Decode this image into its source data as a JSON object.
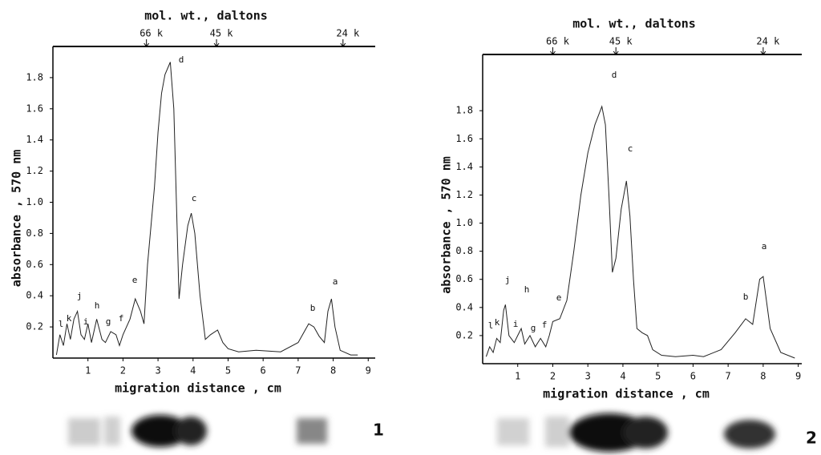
{
  "chart_data": [
    {
      "type": "line",
      "top_axis_label": "mol. wt., daltons",
      "x_label": "migration distance , cm",
      "y_label": "absorbance , 570 nm",
      "panel_label": "1",
      "color": "#222222",
      "xlim": [
        0,
        9.2
      ],
      "ylim": [
        0,
        2.0
      ],
      "xticks": [
        1,
        2,
        3,
        4,
        5,
        6,
        7,
        8,
        9
      ],
      "yticks": [
        0.2,
        0.4,
        0.6,
        0.8,
        {
          "value": 1,
          "label": "1.0"
        },
        1.2,
        1.4,
        1.6,
        1.8
      ],
      "x2ticks": [
        {
          "value": 2.67,
          "label": "66 k"
        },
        {
          "value": 4.67,
          "label": "45 k"
        },
        {
          "value": 8.28,
          "label": "24 k"
        }
      ],
      "peak_labels": [
        "a",
        "b",
        "c",
        "d",
        "e",
        "f",
        "g",
        "h",
        "i",
        "j",
        "k",
        "l"
      ],
      "x": [
        0.1,
        0.2,
        0.3,
        0.4,
        0.5,
        0.6,
        0.7,
        0.8,
        0.9,
        1.0,
        1.1,
        1.25,
        1.4,
        1.5,
        1.65,
        1.8,
        1.9,
        2.0,
        2.2,
        2.35,
        2.5,
        2.6,
        2.7,
        2.9,
        3.0,
        3.1,
        3.2,
        3.35,
        3.45,
        3.55,
        3.6,
        3.7,
        3.85,
        3.95,
        4.05,
        4.2,
        4.35,
        4.5,
        4.7,
        4.85,
        5.0,
        5.3,
        5.8,
        6.5,
        7.0,
        7.3,
        7.45,
        7.6,
        7.75,
        7.85,
        7.95,
        8.05,
        8.2,
        8.5,
        8.7
      ],
      "values": [
        0.02,
        0.15,
        0.08,
        0.22,
        0.12,
        0.25,
        0.3,
        0.15,
        0.12,
        0.22,
        0.1,
        0.25,
        0.12,
        0.1,
        0.17,
        0.15,
        0.08,
        0.15,
        0.25,
        0.38,
        0.3,
        0.22,
        0.6,
        1.1,
        1.45,
        1.7,
        1.82,
        1.9,
        1.6,
        0.8,
        0.38,
        0.6,
        0.85,
        0.93,
        0.8,
        0.4,
        0.12,
        0.15,
        0.18,
        0.1,
        0.06,
        0.04,
        0.05,
        0.04,
        0.1,
        0.22,
        0.2,
        0.14,
        0.1,
        0.3,
        0.38,
        0.2,
        0.05,
        0.02,
        0.02
      ]
    },
    {
      "type": "line",
      "top_axis_label": "mol. wt., daltons",
      "x_label": "migration distance , cm",
      "y_label": "absorbance , 570 nm",
      "panel_label": "2",
      "color": "#222222",
      "xlim": [
        0,
        9.1
      ],
      "ylim": [
        0,
        2.2
      ],
      "xticks": [
        1,
        2,
        3,
        4,
        5,
        6,
        7,
        8,
        9
      ],
      "yticks": [
        0.2,
        0.4,
        0.6,
        0.8,
        {
          "value": 1,
          "label": "1.0"
        },
        1.2,
        1.4,
        1.6,
        1.8
      ],
      "x2ticks": [
        {
          "value": 2.0,
          "label": "66 k"
        },
        {
          "value": 3.8,
          "label": "45 k"
        },
        {
          "value": 8.0,
          "label": "24 k"
        }
      ],
      "peak_labels": [
        "a",
        "b",
        "c",
        "d",
        "e",
        "f",
        "g",
        "h",
        "i",
        "j",
        "k",
        "l"
      ],
      "x": [
        0.1,
        0.2,
        0.3,
        0.4,
        0.5,
        0.6,
        0.65,
        0.75,
        0.9,
        1.0,
        1.1,
        1.2,
        1.35,
        1.5,
        1.65,
        1.8,
        1.9,
        2.0,
        2.2,
        2.4,
        2.6,
        2.8,
        3.0,
        3.2,
        3.4,
        3.5,
        3.6,
        3.7,
        3.8,
        3.95,
        4.1,
        4.2,
        4.3,
        4.4,
        4.55,
        4.7,
        4.85,
        5.1,
        5.5,
        6.0,
        6.3,
        6.8,
        7.2,
        7.5,
        7.7,
        7.9,
        8.0,
        8.2,
        8.5,
        8.9
      ],
      "values": [
        0.05,
        0.12,
        0.08,
        0.18,
        0.15,
        0.38,
        0.42,
        0.2,
        0.15,
        0.2,
        0.25,
        0.14,
        0.2,
        0.12,
        0.18,
        0.12,
        0.2,
        0.3,
        0.32,
        0.45,
        0.8,
        1.2,
        1.5,
        1.7,
        1.83,
        1.7,
        1.2,
        0.65,
        0.75,
        1.1,
        1.3,
        1.05,
        0.6,
        0.25,
        0.22,
        0.2,
        0.1,
        0.06,
        0.05,
        0.06,
        0.05,
        0.1,
        0.22,
        0.32,
        0.28,
        0.6,
        0.62,
        0.25,
        0.08,
        0.04
      ]
    }
  ]
}
